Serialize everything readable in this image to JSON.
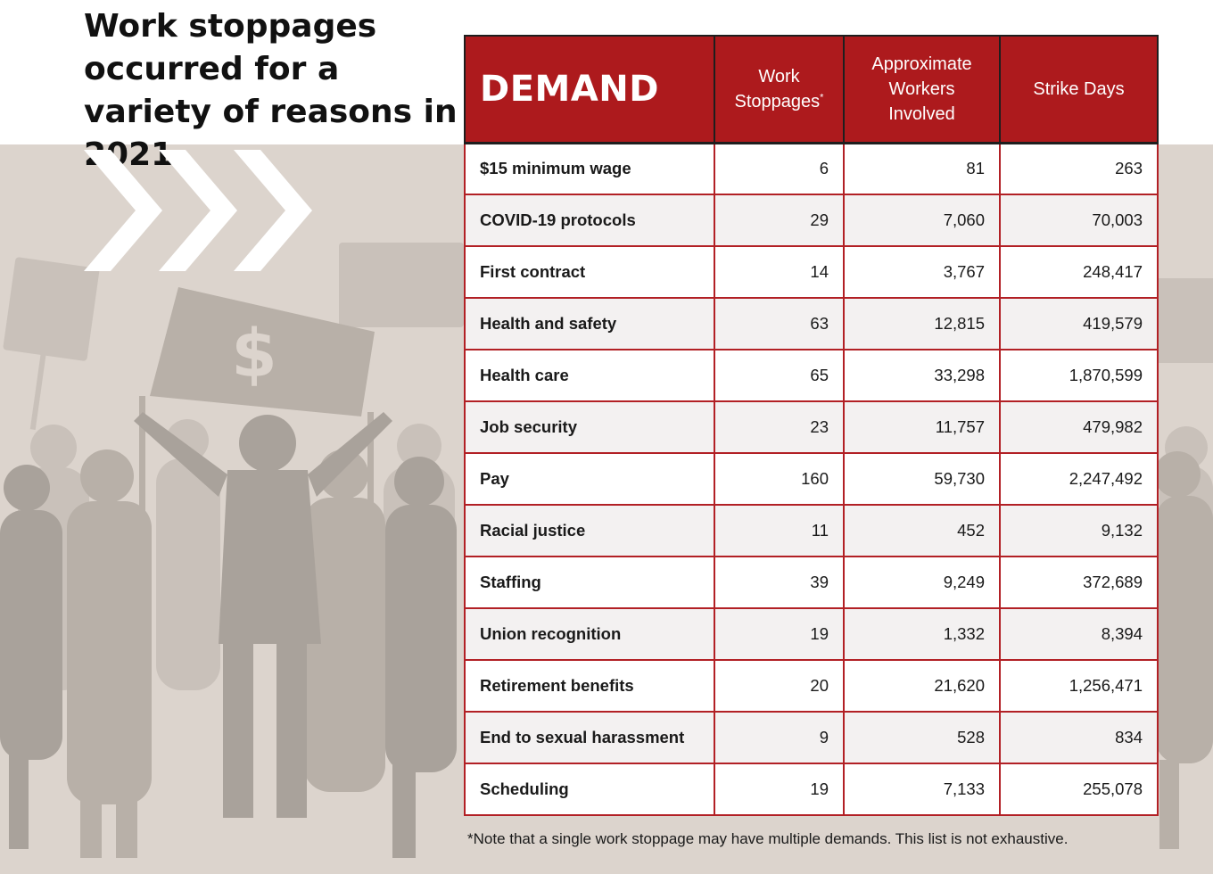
{
  "title": "Work stoppages occurred for a variety of reasons in 2021",
  "colors": {
    "header_red": "#ad1a1d",
    "border_red": "#b22025",
    "background": "#dcd4cd",
    "silhouette": "#b3aca5"
  },
  "icons": [
    "chevron-arrows-icon",
    "dollar-sign-icon",
    "protest-crowd-silhouette"
  ],
  "banner_symbol": "$",
  "chart_data": {
    "type": "table",
    "title": "Work stoppages occurred for a variety of reasons in 2021",
    "columns": [
      "DEMAND",
      "Work Stoppages",
      "Approximate Workers Involved",
      "Strike Days"
    ],
    "header_lines": {
      "demand": "DEMAND",
      "stoppages": [
        "Work",
        "Stoppages"
      ],
      "stoppages_marker": "*",
      "workers": [
        "Approximate",
        "Workers",
        "Involved"
      ],
      "days": "Strike Days"
    },
    "rows": [
      {
        "demand": "$15 minimum wage",
        "stoppages": "6",
        "workers": "81",
        "days": "263"
      },
      {
        "demand": "COVID-19 protocols",
        "stoppages": "29",
        "workers": "7,060",
        "days": "70,003"
      },
      {
        "demand": "First contract",
        "stoppages": "14",
        "workers": "3,767",
        "days": "248,417"
      },
      {
        "demand": "Health and safety",
        "stoppages": "63",
        "workers": "12,815",
        "days": "419,579"
      },
      {
        "demand": "Health care",
        "stoppages": "65",
        "workers": "33,298",
        "days": "1,870,599"
      },
      {
        "demand": "Job security",
        "stoppages": "23",
        "workers": "11,757",
        "days": "479,982"
      },
      {
        "demand": "Pay",
        "stoppages": "160",
        "workers": "59,730",
        "days": "2,247,492"
      },
      {
        "demand": "Racial justice",
        "stoppages": "11",
        "workers": "452",
        "days": "9,132"
      },
      {
        "demand": "Staffing",
        "stoppages": "39",
        "workers": "9,249",
        "days": "372,689"
      },
      {
        "demand": "Union recognition",
        "stoppages": "19",
        "workers": "1,332",
        "days": "8,394"
      },
      {
        "demand": "Retirement benefits",
        "stoppages": "20",
        "workers": "21,620",
        "days": "1,256,471"
      },
      {
        "demand": "End to sexual harassment",
        "stoppages": "9",
        "workers": "528",
        "days": "834"
      },
      {
        "demand": "Scheduling",
        "stoppages": "19",
        "workers": "7,133",
        "days": "255,078"
      }
    ],
    "footnote": "*Note that a single work stoppage may have multiple demands. This list is not exhaustive."
  }
}
